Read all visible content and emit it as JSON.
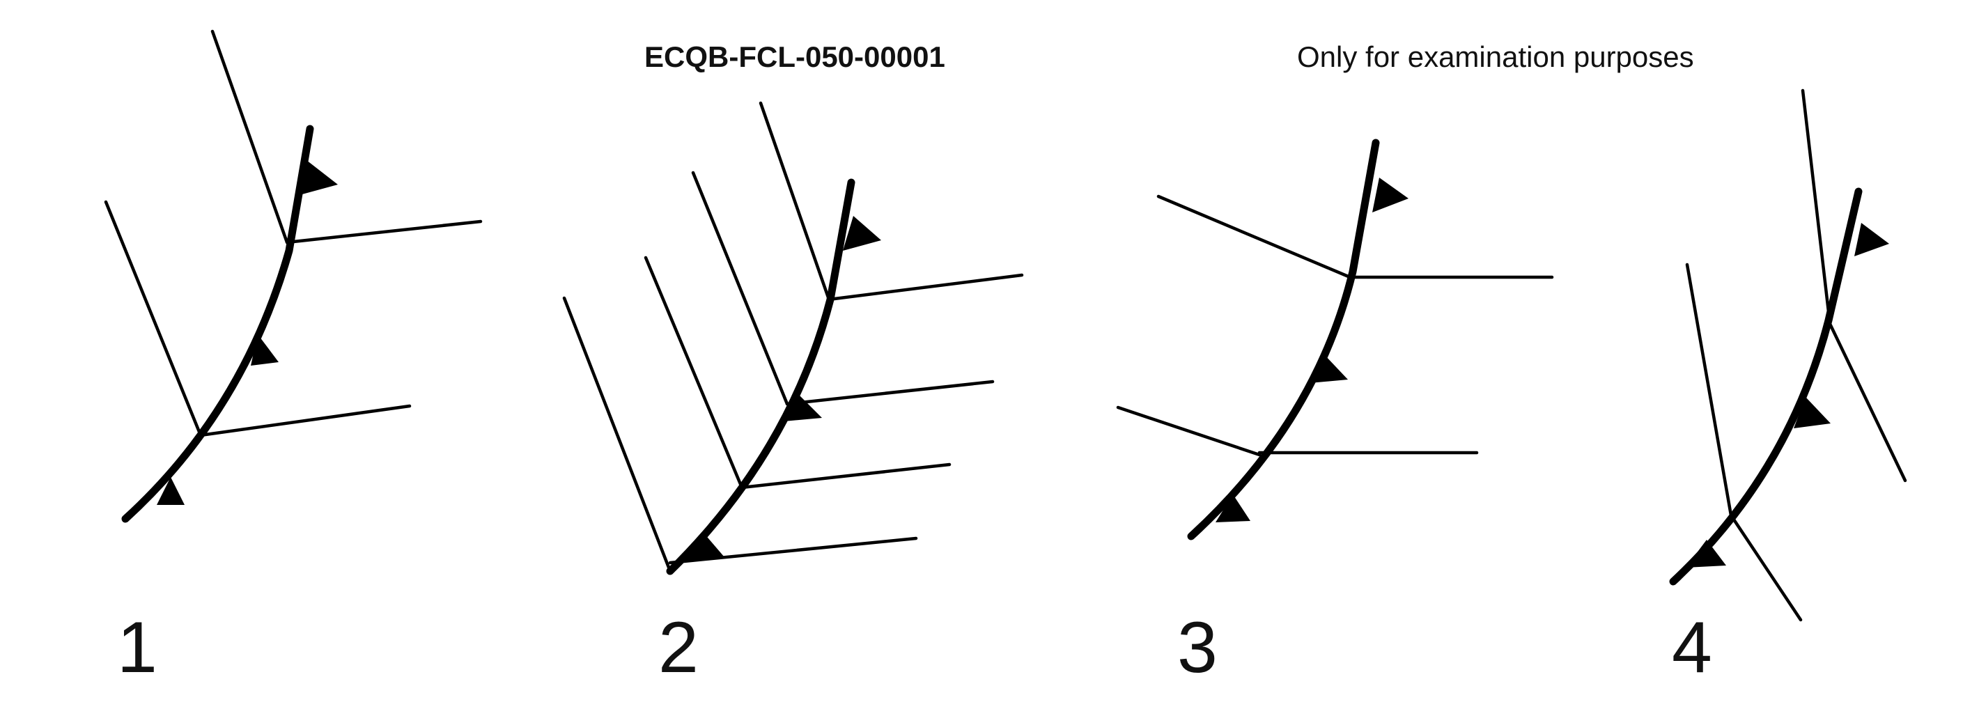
{
  "header": {
    "question_code": "ECQB-FCL-050-00001",
    "notice": "Only for examination purposes"
  },
  "colors": {
    "background": "#ffffff",
    "ink": "#000000"
  },
  "panels": [
    {
      "label": "1"
    },
    {
      "label": "2"
    },
    {
      "label": "3"
    },
    {
      "label": "4"
    }
  ]
}
